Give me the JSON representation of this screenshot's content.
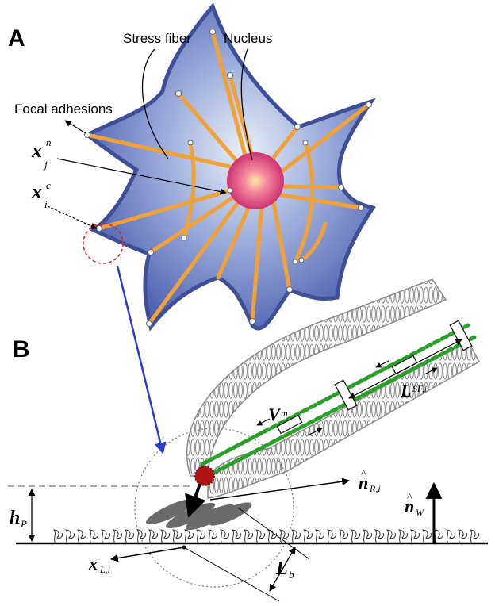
{
  "panels": {
    "a": "A",
    "b": "B"
  },
  "panel_a": {
    "labels": {
      "stress_fiber": "Stress fiber",
      "nucleus": "Nucleus",
      "focal_adhesions": "Focal adhesions"
    },
    "symbols": {
      "xjn_base": "x",
      "xjn_sub": "j",
      "xjn_sup": "n",
      "xic_base": "x",
      "xic_sub": "i",
      "xic_sup": "c"
    },
    "colors": {
      "cell_fill": "#5a6fb8",
      "cell_edge": "#3e4f97",
      "fiber": "#f0a238",
      "nucleus": "#e0417a",
      "focal_adhesion": "#ffffff",
      "zoom_circle": "#e02020",
      "zoom_arrow": "#2a3bd0"
    }
  },
  "panel_b": {
    "symbols": {
      "hp_base": "h",
      "hp_sub": "P",
      "v_base": "V",
      "v_sub": "m",
      "lsf_base": "L",
      "lsf_sub": "SF,i",
      "nr_base": "n",
      "nr_sub": "R,i",
      "nw_base": "n",
      "nw_sub": "W",
      "xl_base": "x",
      "xl_sub": "L,i",
      "lb_base": "L",
      "lb_sub": "b"
    },
    "colors": {
      "membrane": "#9a9a9a",
      "actin": "#2aa02a",
      "adhesion_complex": "#b01515",
      "substrate": "#333333"
    }
  }
}
